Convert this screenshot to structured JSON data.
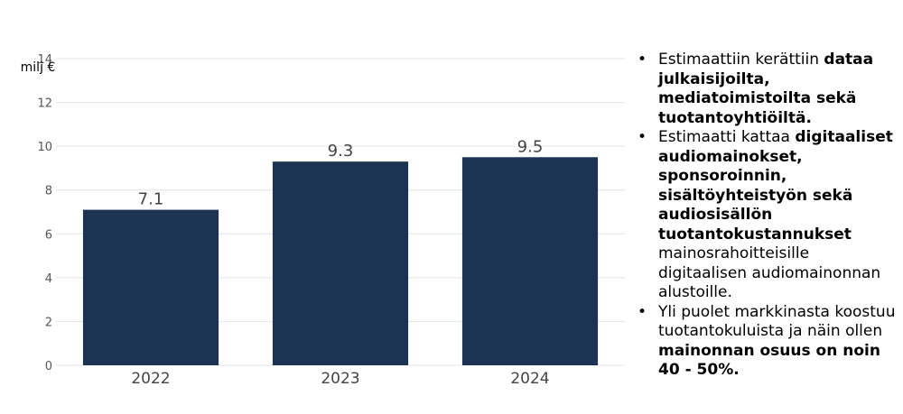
{
  "chart_data": {
    "type": "bar",
    "categories": [
      "2022",
      "2023",
      "2024"
    ],
    "values": [
      7.1,
      9.3,
      9.5
    ],
    "value_labels": [
      "7.1",
      "9.3",
      "9.5"
    ],
    "ylabel": "milj €",
    "ylim": [
      0,
      14
    ],
    "yticks": [
      0,
      2,
      4,
      6,
      8,
      10,
      12,
      14
    ],
    "grid": true,
    "bar_color": "#1c3353"
  },
  "notes": [
    {
      "segments": [
        {
          "text": "Estimaattiin kerättiin ",
          "bold": false
        },
        {
          "text": "dataa julkaisijoilta, mediatoimistoilta sekä tuotantoyhtiöiltä.",
          "bold": true
        }
      ]
    },
    {
      "segments": [
        {
          "text": "Estimaatti kattaa ",
          "bold": false
        },
        {
          "text": "digitaaliset audiomainokset, sponsoroinnin, sisältöyhteistyön sekä audiosisällön tuotantokustannukset",
          "bold": true
        },
        {
          "text": " mainosrahoitteisille digitaalisen audiomainonnan alustoille.",
          "bold": false
        }
      ]
    },
    {
      "segments": [
        {
          "text": "Yli puolet markkinasta koostuu tuotantokuluista ja näin ollen ",
          "bold": false
        },
        {
          "text": "mainonnan osuus on noin 40 - 50%.",
          "bold": true
        }
      ]
    }
  ]
}
